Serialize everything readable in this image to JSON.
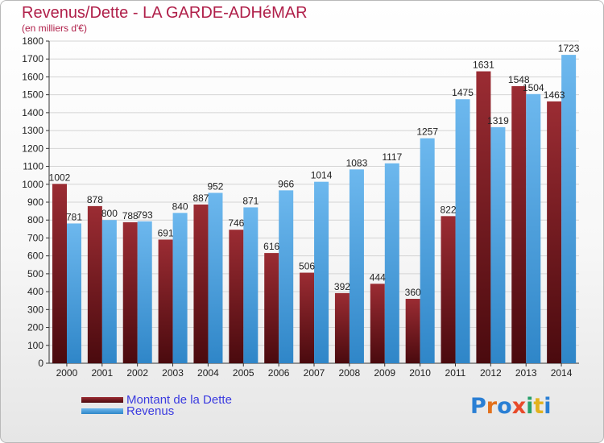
{
  "title": "Revenus/Dette - LA GARDE-ADHéMAR",
  "subtitle": "(en milliers d'€)",
  "colors": {
    "title": "#b0204a",
    "dette_top": "#9b2c33",
    "dette_bottom": "#4a0a0e",
    "revenus_top": "#6db8ee",
    "revenus_bottom": "#2f86c8",
    "legend_text": "#3b3be0"
  },
  "legend": {
    "dette": "Montant de la Dette",
    "revenus": "Revenus"
  },
  "logo": {
    "letters": [
      "P",
      "r",
      "o",
      "x",
      "i",
      "t",
      "i"
    ],
    "letter_colors": [
      "#2a7fd4",
      "#e2711d",
      "#2a7fd4",
      "#e84a2a",
      "#27a06a",
      "#e2b21d",
      "#2a7fd4"
    ]
  },
  "chart_data": {
    "type": "bar",
    "title": "Revenus/Dette - LA GARDE-ADHéMAR",
    "subtitle": "(en milliers d'€)",
    "xlabel": "",
    "ylabel": "",
    "categories": [
      "2000",
      "2001",
      "2002",
      "2003",
      "2004",
      "2005",
      "2006",
      "2007",
      "2008",
      "2009",
      "2010",
      "2011",
      "2012",
      "2013",
      "2014"
    ],
    "series": [
      {
        "name": "Montant de la Dette",
        "values": [
          1002,
          878,
          788,
          691,
          887,
          746,
          616,
          506,
          392,
          444,
          360,
          822,
          1631,
          1548,
          1463
        ]
      },
      {
        "name": "Revenus",
        "values": [
          781,
          800,
          793,
          840,
          952,
          871,
          966,
          1014,
          1083,
          1117,
          1257,
          1475,
          1319,
          1504,
          1723
        ]
      }
    ],
    "ylim": [
      0,
      1800
    ],
    "yticks": [
      0,
      100,
      200,
      300,
      400,
      500,
      600,
      700,
      800,
      900,
      1000,
      1100,
      1200,
      1300,
      1400,
      1500,
      1600,
      1700,
      1800
    ],
    "grid": true,
    "legend_position": "bottom-left"
  }
}
